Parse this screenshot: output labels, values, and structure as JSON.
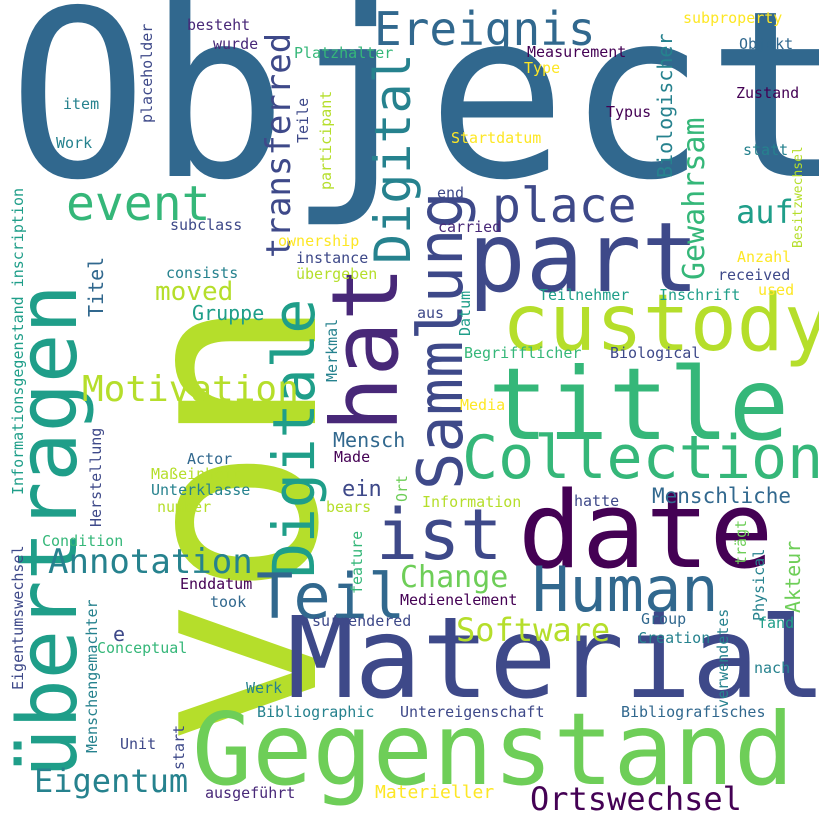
{
  "colors": {
    "dark_purple": "#440154",
    "indigo": "#482878",
    "slate_blue": "#3e4989",
    "steel_blue": "#31688e",
    "teal": "#26828e",
    "green_teal": "#1f9e89",
    "green": "#35b779",
    "lime_green": "#6ece58",
    "yellow_green": "#b5de2b",
    "yellow": "#fde725"
  },
  "words": [
    {
      "text": "Object",
      "color": "#31688e"
    },
    {
      "text": "von",
      "color": "#b5de2b"
    },
    {
      "text": "Material",
      "color": "#3e4989"
    },
    {
      "text": "Gegenstand",
      "color": "#6ece58"
    },
    {
      "text": "übertragen",
      "color": "#1f9e89"
    },
    {
      "text": "hat",
      "color": "#482878"
    },
    {
      "text": "part",
      "color": "#3e4989"
    },
    {
      "text": "title",
      "color": "#35b779"
    },
    {
      "text": "custody",
      "color": "#b5de2b"
    },
    {
      "text": "date",
      "color": "#440154"
    },
    {
      "text": "Collection",
      "color": "#35b779"
    },
    {
      "text": "Sammlung",
      "color": "#3e4989"
    },
    {
      "text": "Digitale",
      "color": "#1f9e89"
    },
    {
      "text": "Digital",
      "color": "#26828e"
    },
    {
      "text": "Human",
      "color": "#31688e"
    },
    {
      "text": "Teil",
      "color": "#31688e"
    },
    {
      "text": "ist",
      "color": "#3e4989"
    },
    {
      "text": "Ereignis",
      "color": "#31688e"
    },
    {
      "text": "place",
      "color": "#3e4989"
    },
    {
      "text": "event",
      "color": "#35b779"
    },
    {
      "text": "transferred",
      "color": "#3e4989"
    },
    {
      "text": "Motivation",
      "color": "#b5de2b"
    },
    {
      "text": "Annotation",
      "color": "#26828e"
    },
    {
      "text": "Software",
      "color": "#b5de2b"
    },
    {
      "text": "Ortswechsel",
      "color": "#440154"
    },
    {
      "text": "Eigentum",
      "color": "#26828e"
    },
    {
      "text": "Change",
      "color": "#6ece58"
    },
    {
      "text": "Gewahrsam",
      "color": "#35b779"
    },
    {
      "text": "auf",
      "color": "#1f9e89"
    },
    {
      "text": "moved",
      "color": "#b5de2b"
    },
    {
      "text": "Gruppe",
      "color": "#1f9e89"
    },
    {
      "text": "Mensch",
      "color": "#31688e"
    },
    {
      "text": "Menschliche",
      "color": "#31688e"
    },
    {
      "text": "Akteur",
      "color": "#6ece58"
    },
    {
      "text": "ein",
      "color": "#3e4989"
    },
    {
      "text": "Biologischer",
      "color": "#26828e"
    },
    {
      "text": "Titel",
      "color": "#31688e"
    },
    {
      "text": "Materieller",
      "color": "#fde725"
    },
    {
      "text": "Begrifflicher",
      "color": "#35b779"
    },
    {
      "text": "Biological",
      "color": "#3e4989"
    },
    {
      "text": "Teilnehmer",
      "color": "#1f9e89"
    },
    {
      "text": "Inschrift",
      "color": "#1f9e89"
    },
    {
      "text": "subproperty",
      "color": "#fde725"
    },
    {
      "text": "Objekt",
      "color": "#31688e"
    },
    {
      "text": "Measurement",
      "color": "#440154"
    },
    {
      "text": "Type",
      "color": "#fde725"
    },
    {
      "text": "Typus",
      "color": "#440154"
    },
    {
      "text": "Zustand",
      "color": "#440154"
    },
    {
      "text": "Startdatum",
      "color": "#fde725"
    },
    {
      "text": "statt",
      "color": "#26828e"
    },
    {
      "text": "Besitzwechsel",
      "color": "#b5de2b"
    },
    {
      "text": "besteht",
      "color": "#482878"
    },
    {
      "text": "wurde",
      "color": "#482878"
    },
    {
      "text": "Platzhalter",
      "color": "#35b779"
    },
    {
      "text": "placeholder",
      "color": "#3e4989"
    },
    {
      "text": "item",
      "color": "#26828e"
    },
    {
      "text": "Work",
      "color": "#26828e"
    },
    {
      "text": "Teile",
      "color": "#3e4989"
    },
    {
      "text": "participant",
      "color": "#b5de2b"
    },
    {
      "text": "end",
      "color": "#3e4989"
    },
    {
      "text": "carried",
      "color": "#482878"
    },
    {
      "text": "subclass",
      "color": "#3e4989"
    },
    {
      "text": "ownership",
      "color": "#fde725"
    },
    {
      "text": "instance",
      "color": "#3e4989"
    },
    {
      "text": "consists",
      "color": "#26828e"
    },
    {
      "text": "übergeben",
      "color": "#b5de2b"
    },
    {
      "text": "received",
      "color": "#3e4989"
    },
    {
      "text": "used",
      "color": "#fde725"
    },
    {
      "text": "Anzahl",
      "color": "#fde725"
    },
    {
      "text": "aus",
      "color": "#3e4989"
    },
    {
      "text": "Datum",
      "color": "#1f9e89"
    },
    {
      "text": "Merkmal",
      "color": "#26828e"
    },
    {
      "text": "Media",
      "color": "#fde725"
    },
    {
      "text": "Actor",
      "color": "#31688e"
    },
    {
      "text": "Maßeinheit",
      "color": "#b5de2b"
    },
    {
      "text": "Unterklasse",
      "color": "#26828e"
    },
    {
      "text": "number",
      "color": "#b5de2b"
    },
    {
      "text": "Made",
      "color": "#440154"
    },
    {
      "text": "Ort",
      "color": "#6ece58"
    },
    {
      "text": "bears",
      "color": "#b5de2b"
    },
    {
      "text": "Information",
      "color": "#b5de2b"
    },
    {
      "text": "hatte",
      "color": "#3e4989"
    },
    {
      "text": "Herstellung",
      "color": "#3e4989"
    },
    {
      "text": "Informationsgegenstand inscription",
      "color": "#1f9e89"
    },
    {
      "text": "Eigentumswechsel",
      "color": "#3e4989"
    },
    {
      "text": "Condition",
      "color": "#35b779"
    },
    {
      "text": "feature",
      "color": "#35b779"
    },
    {
      "text": "trägt",
      "color": "#6ece58"
    },
    {
      "text": "Physical",
      "color": "#26828e"
    },
    {
      "text": "verwendetes",
      "color": "#26828e"
    },
    {
      "text": "e",
      "color": "#3e4989"
    },
    {
      "text": "Enddatum",
      "color": "#440154"
    },
    {
      "text": "Conceptual",
      "color": "#35b779"
    },
    {
      "text": "took",
      "color": "#31688e"
    },
    {
      "text": "Medienelement",
      "color": "#440154"
    },
    {
      "text": "surrendered",
      "color": "#3e4989"
    },
    {
      "text": "Group",
      "color": "#31688e"
    },
    {
      "text": "Creation",
      "color": "#26828e"
    },
    {
      "text": "fand",
      "color": "#1f9e89"
    },
    {
      "text": "nach",
      "color": "#26828e"
    },
    {
      "text": "Werk",
      "color": "#26828e"
    },
    {
      "text": "Menschengemachter",
      "color": "#26828e"
    },
    {
      "text": "Bibliographic",
      "color": "#26828e"
    },
    {
      "text": "Untereigenschaft",
      "color": "#3e4989"
    },
    {
      "text": "Bibliografisches",
      "color": "#31688e"
    },
    {
      "text": "Unit",
      "color": "#3e4989"
    },
    {
      "text": "start",
      "color": "#3e4989"
    },
    {
      "text": "ausgeführt",
      "color": "#482878"
    }
  ]
}
